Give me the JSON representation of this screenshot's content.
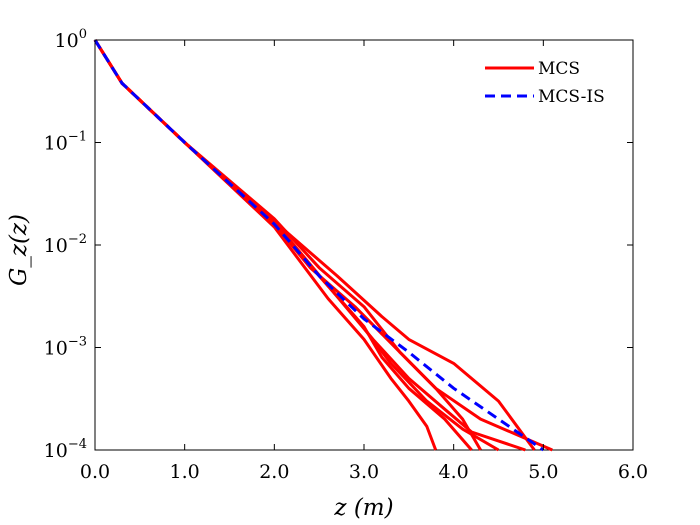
{
  "chart_data": {
    "type": "line",
    "xlabel": "z (m)",
    "ylabel": "G_z(z)",
    "x_ticks": [
      "0.0",
      "1.0",
      "2.0",
      "3.0",
      "4.0",
      "5.0",
      "6.0"
    ],
    "y_ticks": [
      {
        "base": "10",
        "exp": "0"
      },
      {
        "base": "10",
        "exp": "−1"
      },
      {
        "base": "10",
        "exp": "−2"
      },
      {
        "base": "10",
        "exp": "−3"
      },
      {
        "base": "10",
        "exp": "−4"
      }
    ],
    "xlim": [
      0,
      6
    ],
    "ylim": [
      0.0001,
      1
    ],
    "yscale": "log",
    "grid": false,
    "legend_position": "top-right",
    "colors": {
      "MCS": "#ff0000",
      "MCS-IS": "#0000ff"
    },
    "series": [
      {
        "name": "MCS",
        "style": "solid",
        "color": "#ff0000",
        "x": [
          0,
          0.3,
          1.0,
          2.0,
          2.5,
          3.0,
          3.4,
          3.8,
          4.3,
          5.1
        ],
        "y": [
          1,
          0.38,
          0.1,
          0.018,
          0.006,
          0.0025,
          0.0009,
          0.0004,
          0.0002,
          0.0001
        ]
      },
      {
        "name": "",
        "style": "solid",
        "color": "#ff0000",
        "x": [
          0,
          0.3,
          1.0,
          2.0,
          2.6,
          3.1,
          3.5,
          3.9,
          4.2,
          4.8
        ],
        "y": [
          1,
          0.38,
          0.1,
          0.017,
          0.004,
          0.0012,
          0.0005,
          0.00025,
          0.00015,
          0.0001
        ]
      },
      {
        "name": "",
        "style": "solid",
        "color": "#ff0000",
        "x": [
          0,
          0.3,
          1.0,
          2.0,
          2.5,
          2.9,
          3.3,
          3.7,
          4.1,
          4.5
        ],
        "y": [
          1,
          0.38,
          0.1,
          0.016,
          0.005,
          0.002,
          0.0007,
          0.0003,
          0.00016,
          0.0001
        ]
      },
      {
        "name": "",
        "style": "solid",
        "color": "#ff0000",
        "x": [
          0,
          0.3,
          1.0,
          2.0,
          2.6,
          3.0,
          3.3,
          3.5,
          3.7,
          3.8
        ],
        "y": [
          1,
          0.38,
          0.1,
          0.015,
          0.003,
          0.0012,
          0.0005,
          0.0003,
          0.00017,
          0.0001
        ]
      },
      {
        "name": "",
        "style": "solid",
        "color": "#ff0000",
        "x": [
          0,
          0.3,
          1.0,
          2.0,
          2.4,
          2.9,
          3.4,
          3.8,
          4.1,
          4.3
        ],
        "y": [
          1,
          0.38,
          0.1,
          0.016,
          0.006,
          0.0025,
          0.0009,
          0.0004,
          0.0002,
          0.0001
        ]
      },
      {
        "name": "",
        "style": "solid",
        "color": "#ff0000",
        "x": [
          0,
          0.3,
          1.0,
          2.0,
          2.7,
          3.2,
          3.5,
          4.0,
          4.5,
          4.9
        ],
        "y": [
          1,
          0.38,
          0.1,
          0.017,
          0.005,
          0.002,
          0.0012,
          0.0007,
          0.0003,
          0.0001
        ]
      },
      {
        "name": "",
        "style": "solid",
        "color": "#ff0000",
        "x": [
          0,
          0.3,
          1.0,
          2.0,
          2.5,
          3.0,
          3.2,
          3.5,
          3.9,
          4.2
        ],
        "y": [
          1,
          0.38,
          0.1,
          0.016,
          0.005,
          0.0016,
          0.0008,
          0.0004,
          0.0002,
          0.0001
        ]
      },
      {
        "name": "MCS-IS",
        "style": "dashed",
        "color": "#0000ff",
        "x": [
          0,
          0.3,
          1.0,
          2.0,
          2.5,
          3.0,
          3.5,
          4.0,
          4.5,
          5.0
        ],
        "y": [
          1,
          0.38,
          0.1,
          0.016,
          0.005,
          0.0019,
          0.0009,
          0.0004,
          0.0002,
          0.0001
        ]
      }
    ]
  }
}
